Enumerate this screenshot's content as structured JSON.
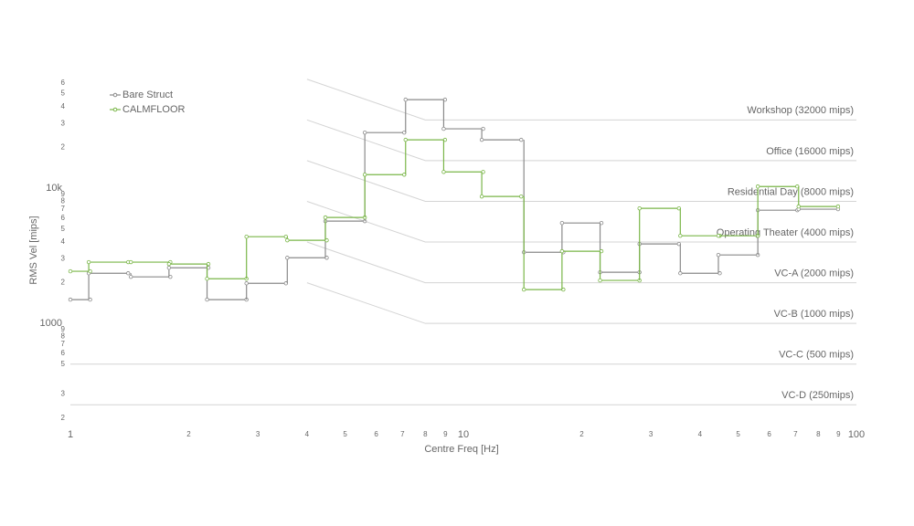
{
  "chart_data": {
    "type": "step",
    "x_label": "Centre Freq [Hz]",
    "y_label": "RMS Vel [mips]",
    "log_x": true,
    "log_y": true,
    "xlim": [
      1,
      100
    ],
    "ylim": [
      160,
      70000
    ],
    "xticks": [
      1,
      2,
      3,
      4,
      5,
      6,
      7,
      8,
      9,
      10,
      {
        "value": 20,
        "label": "2"
      },
      {
        "value": 30,
        "label": "3"
      },
      {
        "value": 40,
        "label": "4"
      },
      {
        "value": 50,
        "label": "5"
      },
      {
        "value": 60,
        "label": "6"
      },
      {
        "value": 70,
        "label": "7"
      },
      {
        "value": 80,
        "label": "8"
      },
      {
        "value": 90,
        "label": "9"
      },
      100
    ],
    "yticks": [
      {
        "value": 200,
        "label": "2"
      },
      {
        "value": 300,
        "label": "3"
      },
      {
        "value": 500,
        "label": "5"
      },
      {
        "value": 600,
        "label": "6"
      },
      {
        "value": 700,
        "label": "7"
      },
      {
        "value": 800,
        "label": "8"
      },
      {
        "value": 900,
        "label": "9"
      },
      1000,
      {
        "value": 2000,
        "label": "2"
      },
      {
        "value": 3000,
        "label": "3"
      },
      {
        "value": 4000,
        "label": "4"
      },
      {
        "value": 5000,
        "label": "5"
      },
      {
        "value": 6000,
        "label": "6"
      },
      {
        "value": 7000,
        "label": "7"
      },
      {
        "value": 8000,
        "label": "8"
      },
      {
        "value": 9000,
        "label": "9"
      },
      {
        "value": 10000,
        "label": "10k"
      },
      {
        "value": 20000,
        "label": "2"
      },
      {
        "value": 30000,
        "label": "3"
      },
      {
        "value": 40000,
        "label": "4"
      },
      {
        "value": 50000,
        "label": "5"
      },
      {
        "value": 60000,
        "label": "6"
      }
    ],
    "legend": "top-left",
    "x": [
      1,
      1.25,
      1.6,
      2,
      2.5,
      3.15,
      4,
      5,
      6.3,
      8,
      10,
      12.5,
      16,
      20,
      25,
      31.5,
      40,
      50,
      63,
      80
    ],
    "series": [
      {
        "name": "Bare Struct",
        "color": "#8a8a8a",
        "values": [
          1500,
          2350,
          2210,
          2580,
          1500,
          1980,
          3060,
          5710,
          25800,
          45200,
          27500,
          22800,
          3360,
          5530,
          2390,
          3870,
          2350,
          3210,
          6880,
          7000
        ]
      },
      {
        "name": "CALMFLOOR",
        "color": "#7ab648",
        "values": [
          2430,
          2840,
          2840,
          2750,
          2140,
          4380,
          4120,
          6080,
          12600,
          22800,
          13200,
          8690,
          1780,
          3420,
          2080,
          7100,
          4450,
          4450,
          10300,
          7330
        ]
      }
    ],
    "criteria": [
      {
        "label": "Workshop (32000 mips)",
        "x": [
          4,
          8,
          100
        ],
        "values": [
          64000,
          32000,
          32000
        ]
      },
      {
        "label": "Office (16000 mips)",
        "x": [
          4,
          8,
          100
        ],
        "values": [
          32000,
          16000,
          16000
        ]
      },
      {
        "label": "Residential Day (8000 mips)",
        "x": [
          4,
          8,
          100
        ],
        "values": [
          16000,
          8000,
          8000
        ]
      },
      {
        "label": "Operating Theater (4000 mips)",
        "x": [
          4,
          8,
          100
        ],
        "values": [
          8000,
          4000,
          4000
        ]
      },
      {
        "label": "VC-A (2000 mips)",
        "x": [
          4,
          8,
          100
        ],
        "values": [
          4000,
          2000,
          2000
        ]
      },
      {
        "label": "VC-B (1000 mips)",
        "x": [
          4,
          8,
          100
        ],
        "values": [
          2000,
          1000,
          1000
        ]
      },
      {
        "label": "VC-C (500 mips)",
        "x": [
          1,
          100
        ],
        "values": [
          500,
          500
        ]
      },
      {
        "label": "VC-D (250mips)",
        "x": [
          1,
          100
        ],
        "values": [
          250,
          250
        ]
      }
    ],
    "criteria_color": "#d4d4d4"
  }
}
